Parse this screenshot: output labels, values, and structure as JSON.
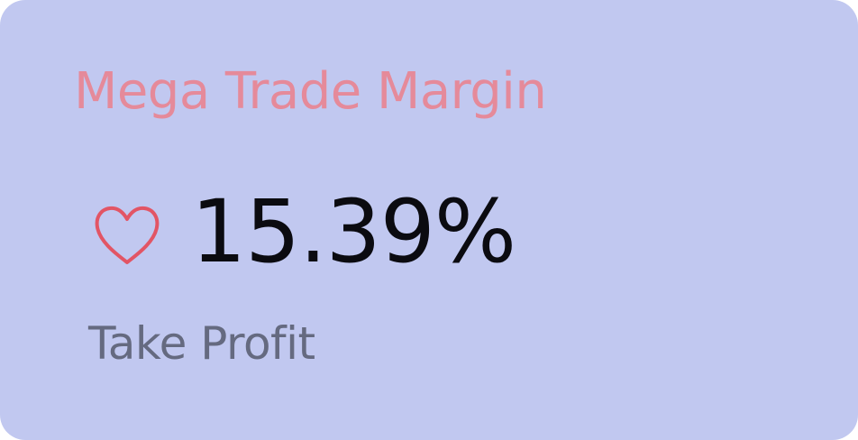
{
  "card": {
    "title": "Mega Trade Margin",
    "value": "15.39%",
    "subtitle": "Take Profit",
    "icon": "heart-icon"
  },
  "colors": {
    "background": "#c1c8f0",
    "title": "#e58a9a",
    "value": "#0b0b10",
    "subtitle": "#656a80",
    "icon": "#e25565"
  }
}
